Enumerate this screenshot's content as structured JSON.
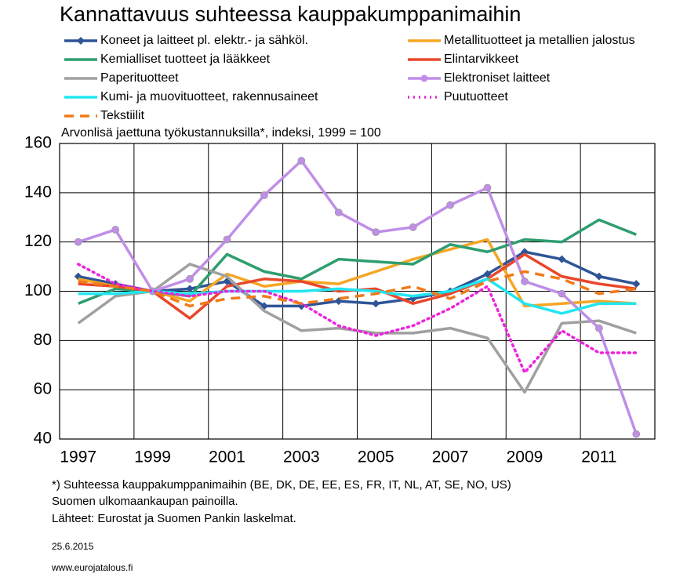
{
  "chart_data": {
    "type": "line",
    "title": "Kannattavuus suhteessa kauppakumppanimaihin",
    "subtitle": "Arvonlisä jaettuna työkustannuksilla*, indeksi, 1999 = 100",
    "notes": [
      "*) Suhteessa kauppakumppanimaihin  (BE, DK, DE, EE, ES, FR, IT, NL, AT, SE, NO, US)",
      "Suomen ulkomaankaupan  painoilla.",
      "Lähteet:  Eurostat ja Suomen Pankin  laskelmat."
    ],
    "date": "25.6.2015",
    "source": "www.eurojatalous.fi",
    "categories": [
      1997,
      null,
      1999,
      null,
      2001,
      null,
      2003,
      null,
      2005,
      null,
      2007,
      null,
      2009,
      null,
      2011,
      null
    ],
    "ylim": [
      40,
      160
    ],
    "yticks": [
      40,
      60,
      80,
      100,
      120,
      140,
      160
    ],
    "grid": true,
    "series": [
      {
        "name": "Koneet ja laitteet pl. elektr.- ja sähköl.",
        "color": "#2f5597",
        "marker": "diamond",
        "values": [
          106,
          103,
          100,
          101,
          104,
          94,
          94,
          96,
          95,
          97,
          100,
          107,
          116,
          113,
          106,
          103
        ]
      },
      {
        "name": "Metallituotteet ja metallien jalostus",
        "color": "#f5a623",
        "values": [
          105,
          102,
          100,
          96,
          107,
          102,
          104,
          103,
          108,
          113,
          117,
          121,
          94,
          95,
          96,
          95
        ]
      },
      {
        "name": "Kemialliset tuotteet ja lääkkeet",
        "color": "#2e9e6e",
        "values": [
          95,
          101,
          100,
          98,
          115,
          108,
          105,
          113,
          112,
          111,
          119,
          116,
          121,
          120,
          129,
          123
        ]
      },
      {
        "name": "Elintarvikkeet",
        "color": "#e8472b",
        "values": [
          103,
          102,
          100,
          89,
          102,
          105,
          104,
          100,
          101,
          95,
          99,
          105,
          115,
          106,
          103,
          101
        ]
      },
      {
        "name": "Paperituotteet",
        "color": "#a0a0a0",
        "values": [
          87,
          98,
          100,
          111,
          106,
          92,
          84,
          85,
          83,
          83,
          85,
          81,
          59,
          87,
          88,
          83
        ]
      },
      {
        "name": "Elektroniset laitteet",
        "color": "#c08ee8",
        "marker": "circle",
        "values": [
          120,
          125,
          100,
          105,
          121,
          139,
          153,
          132,
          124,
          126,
          135,
          142,
          104,
          99,
          85,
          42
        ]
      },
      {
        "name": "Kumi- ja muovituotteet, rakennusaineet",
        "color": "#22e5f0",
        "values": [
          99,
          99,
          100,
          99,
          100,
          100,
          100,
          101,
          100,
          98,
          100,
          105,
          95,
          91,
          95,
          95
        ]
      },
      {
        "name": "Puutuotteet",
        "color": "#ee22dd",
        "dash": "dotted",
        "values": [
          111,
          103,
          100,
          98,
          100,
          100,
          95,
          86,
          82,
          86,
          93,
          102,
          67,
          84,
          75,
          75
        ]
      },
      {
        "name": "Tekstiilit",
        "color": "#f07a1a",
        "dash": "dashed",
        "values": [
          104,
          102,
          100,
          94,
          97,
          98,
          95,
          97,
          99,
          102,
          97,
          104,
          108,
          105,
          99,
          101
        ]
      }
    ]
  }
}
